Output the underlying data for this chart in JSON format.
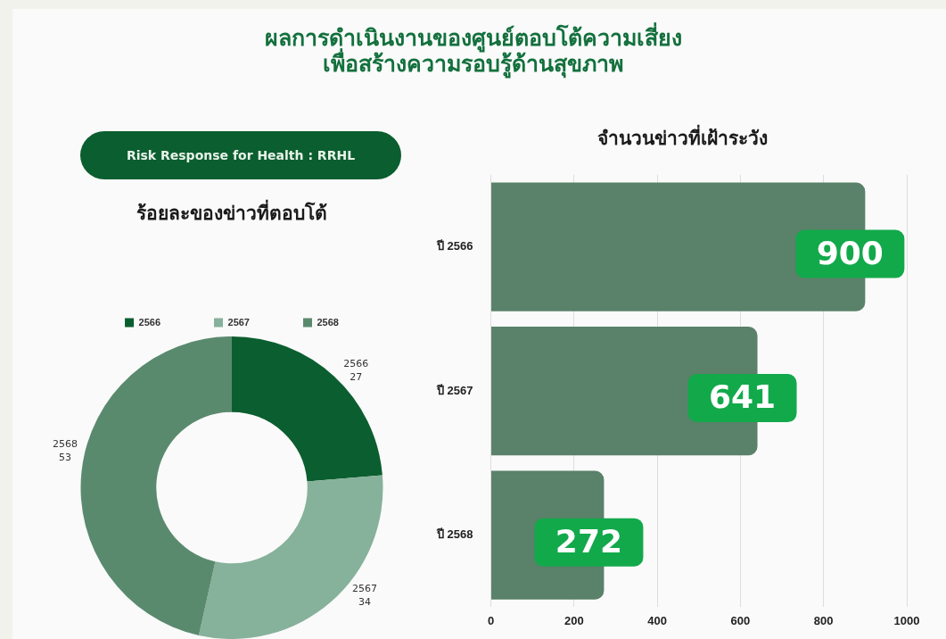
{
  "chart_data": [
    {
      "type": "donut",
      "title": "ร้อยละของข่าวที่ตอบโต้",
      "annotations": [
        "ผลการดำเนินงานของศูนย์ตอบโต้ความเสี่ยง\nเพื่อสร้างความรอบรู้ด้านสุขภาพ",
        "Risk Response for Health : RRHL"
      ],
      "categories": [
        "2566",
        "2567",
        "2568"
      ],
      "values": [
        27,
        34,
        53
      ],
      "colors": [
        "#0b5e2f",
        "#86b19b",
        "#5a8a6e"
      ],
      "data_labels": true,
      "legend": "top"
    },
    {
      "type": "bar",
      "title": "จำนวนข่าวที่เฝ้าระวัง",
      "orientation": "horizontal",
      "categories": [
        "ปี 2566",
        "ปี 2567",
        "ปี 2568"
      ],
      "values": [
        900,
        641,
        272
      ],
      "color": "#5a8169",
      "xlim": [
        0,
        1000
      ],
      "xticks": [
        0,
        200,
        400,
        600,
        800,
        1000
      ],
      "grid": "x",
      "data_labels": true,
      "legend": false
    }
  ]
}
